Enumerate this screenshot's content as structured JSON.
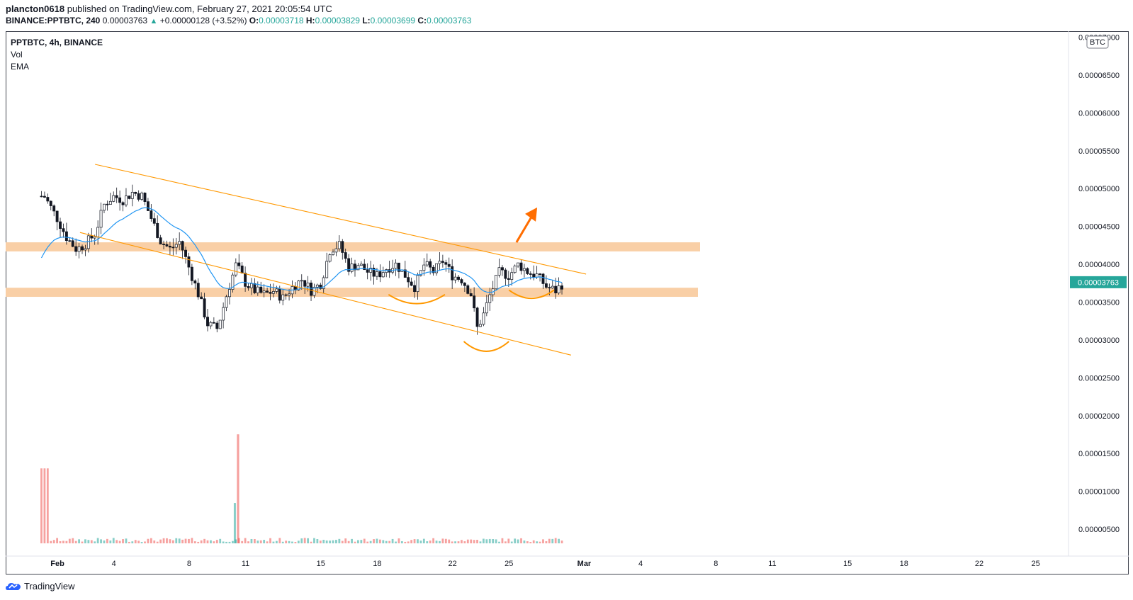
{
  "header": {
    "user": "plancton0618",
    "published": "published on TradingView.com, February 27, 2021 20:05:54 UTC",
    "symbol": "BINANCE:PPTBTC, 240",
    "last": "0.00003763",
    "change": "+0.00000128 (+3.52%)",
    "o_label": "O:",
    "o": "0.00003718",
    "h_label": "H:",
    "h": "0.00003829",
    "l_label": "L:",
    "l": "0.00003699",
    "c_label": "C:",
    "c": "0.00003763"
  },
  "legend": {
    "title": "PPTBTC, 4h, BINANCE",
    "vol": "Vol",
    "ema": "EMA"
  },
  "footer": {
    "brand": "TradingView"
  },
  "colors": {
    "up": "#26a69a",
    "down": "#ef5350",
    "ema": "#2196f3",
    "zone": "#f9cfa6",
    "channel": "#ff9800",
    "arrow": "#ff6d00",
    "price_tag": "#26a69a"
  },
  "chart_data": {
    "type": "candlestick",
    "currency": "BTC",
    "current_price": "0.00003763",
    "y_axis_ticks": [
      "0.00007000",
      "0.00006500",
      "0.00006000",
      "0.00005500",
      "0.00005000",
      "0.00004500",
      "0.00004000",
      "0.00003500",
      "0.00003000",
      "0.00002500",
      "0.00002000",
      "0.00001500",
      "0.00001000",
      "0.00000500"
    ],
    "x_axis_ticks": [
      "Feb",
      "4",
      "8",
      "11",
      "15",
      "18",
      "22",
      "25",
      "Mar",
      "4",
      "8",
      "11",
      "15",
      "18",
      "22",
      "25"
    ],
    "x_tick_days": [
      1,
      4,
      8,
      11,
      15,
      18,
      22,
      25,
      29,
      32,
      36,
      39,
      43,
      46,
      50,
      53
    ],
    "ylim": [
      0,
      7.35e-05
    ],
    "close_path": [
      [
        0.3,
        4.9e-05
      ],
      [
        1.0,
        4.6e-05
      ],
      [
        1.5,
        4.35e-05
      ],
      [
        2.0,
        4.2e-05
      ],
      [
        2.4,
        4.25e-05
      ],
      [
        3.0,
        4.4e-05
      ],
      [
        3.5,
        4.8e-05
      ],
      [
        4.0,
        4.9e-05
      ],
      [
        4.5,
        4.85e-05
      ],
      [
        5.0,
        4.95e-05
      ],
      [
        5.5,
        4.9e-05
      ],
      [
        6.0,
        4.6e-05
      ],
      [
        6.5,
        4.3e-05
      ],
      [
        7.0,
        4.2e-05
      ],
      [
        7.5,
        4.3e-05
      ],
      [
        8.0,
        3.95e-05
      ],
      [
        8.5,
        3.6e-05
      ],
      [
        9.0,
        3.2e-05
      ],
      [
        9.5,
        3.15e-05
      ],
      [
        10.0,
        3.6e-05
      ],
      [
        10.5,
        4e-05
      ],
      [
        11.0,
        3.75e-05
      ],
      [
        11.5,
        3.65e-05
      ],
      [
        12.0,
        3.6e-05
      ],
      [
        12.5,
        3.65e-05
      ],
      [
        13.0,
        3.55e-05
      ],
      [
        13.5,
        3.7e-05
      ],
      [
        14.0,
        3.8e-05
      ],
      [
        14.5,
        3.65e-05
      ],
      [
        15.0,
        3.75e-05
      ],
      [
        15.5,
        4.2e-05
      ],
      [
        16.0,
        4.25e-05
      ],
      [
        16.5,
        3.95e-05
      ],
      [
        17.0,
        4e-05
      ],
      [
        17.5,
        3.9e-05
      ],
      [
        18.0,
        3.85e-05
      ],
      [
        18.5,
        3.95e-05
      ],
      [
        19.0,
        4e-05
      ],
      [
        19.5,
        3.85e-05
      ],
      [
        20.0,
        3.7e-05
      ],
      [
        20.5,
        4e-05
      ],
      [
        21.0,
        3.9e-05
      ],
      [
        21.5,
        4.05e-05
      ],
      [
        22.0,
        3.85e-05
      ],
      [
        22.5,
        3.8e-05
      ],
      [
        23.0,
        3.6e-05
      ],
      [
        23.3,
        3.15e-05
      ],
      [
        23.6,
        3.3e-05
      ],
      [
        24.0,
        3.6e-05
      ],
      [
        24.5,
        3.9e-05
      ],
      [
        25.0,
        3.85e-05
      ],
      [
        25.5,
        4e-05
      ],
      [
        26.0,
        3.9e-05
      ],
      [
        26.5,
        3.85e-05
      ],
      [
        27.0,
        3.7e-05
      ],
      [
        27.5,
        3.65e-05
      ],
      [
        27.9,
        3.76e-05
      ]
    ],
    "volume_spike_day": 10.6,
    "volume_spike_value": 1.6e-05,
    "zones": [
      {
        "low": 4.17e-05,
        "high": 4.29e-05
      },
      {
        "low": 3.57e-05,
        "high": 3.69e-05
      }
    ],
    "channel_upper": [
      [
        3.0,
        5.32e-05
      ],
      [
        29.1,
        3.87e-05
      ]
    ],
    "channel_lower": [
      [
        2.2,
        4.42e-05
      ],
      [
        28.3,
        2.8e-05
      ]
    ],
    "arcs": [
      {
        "x1": 18.6,
        "x2": 21.6,
        "y": 3.6e-05,
        "depth": 1.2e-06
      },
      {
        "x1": 22.6,
        "x2": 25.0,
        "y": 2.98e-05,
        "depth": 1.3e-06
      },
      {
        "x1": 25.0,
        "x2": 27.4,
        "y": 3.66e-05,
        "depth": 1.1e-06
      }
    ],
    "arrow": {
      "from": [
        25.4,
        4.29e-05
      ],
      "to": [
        26.5,
        4.75e-05
      ]
    }
  }
}
